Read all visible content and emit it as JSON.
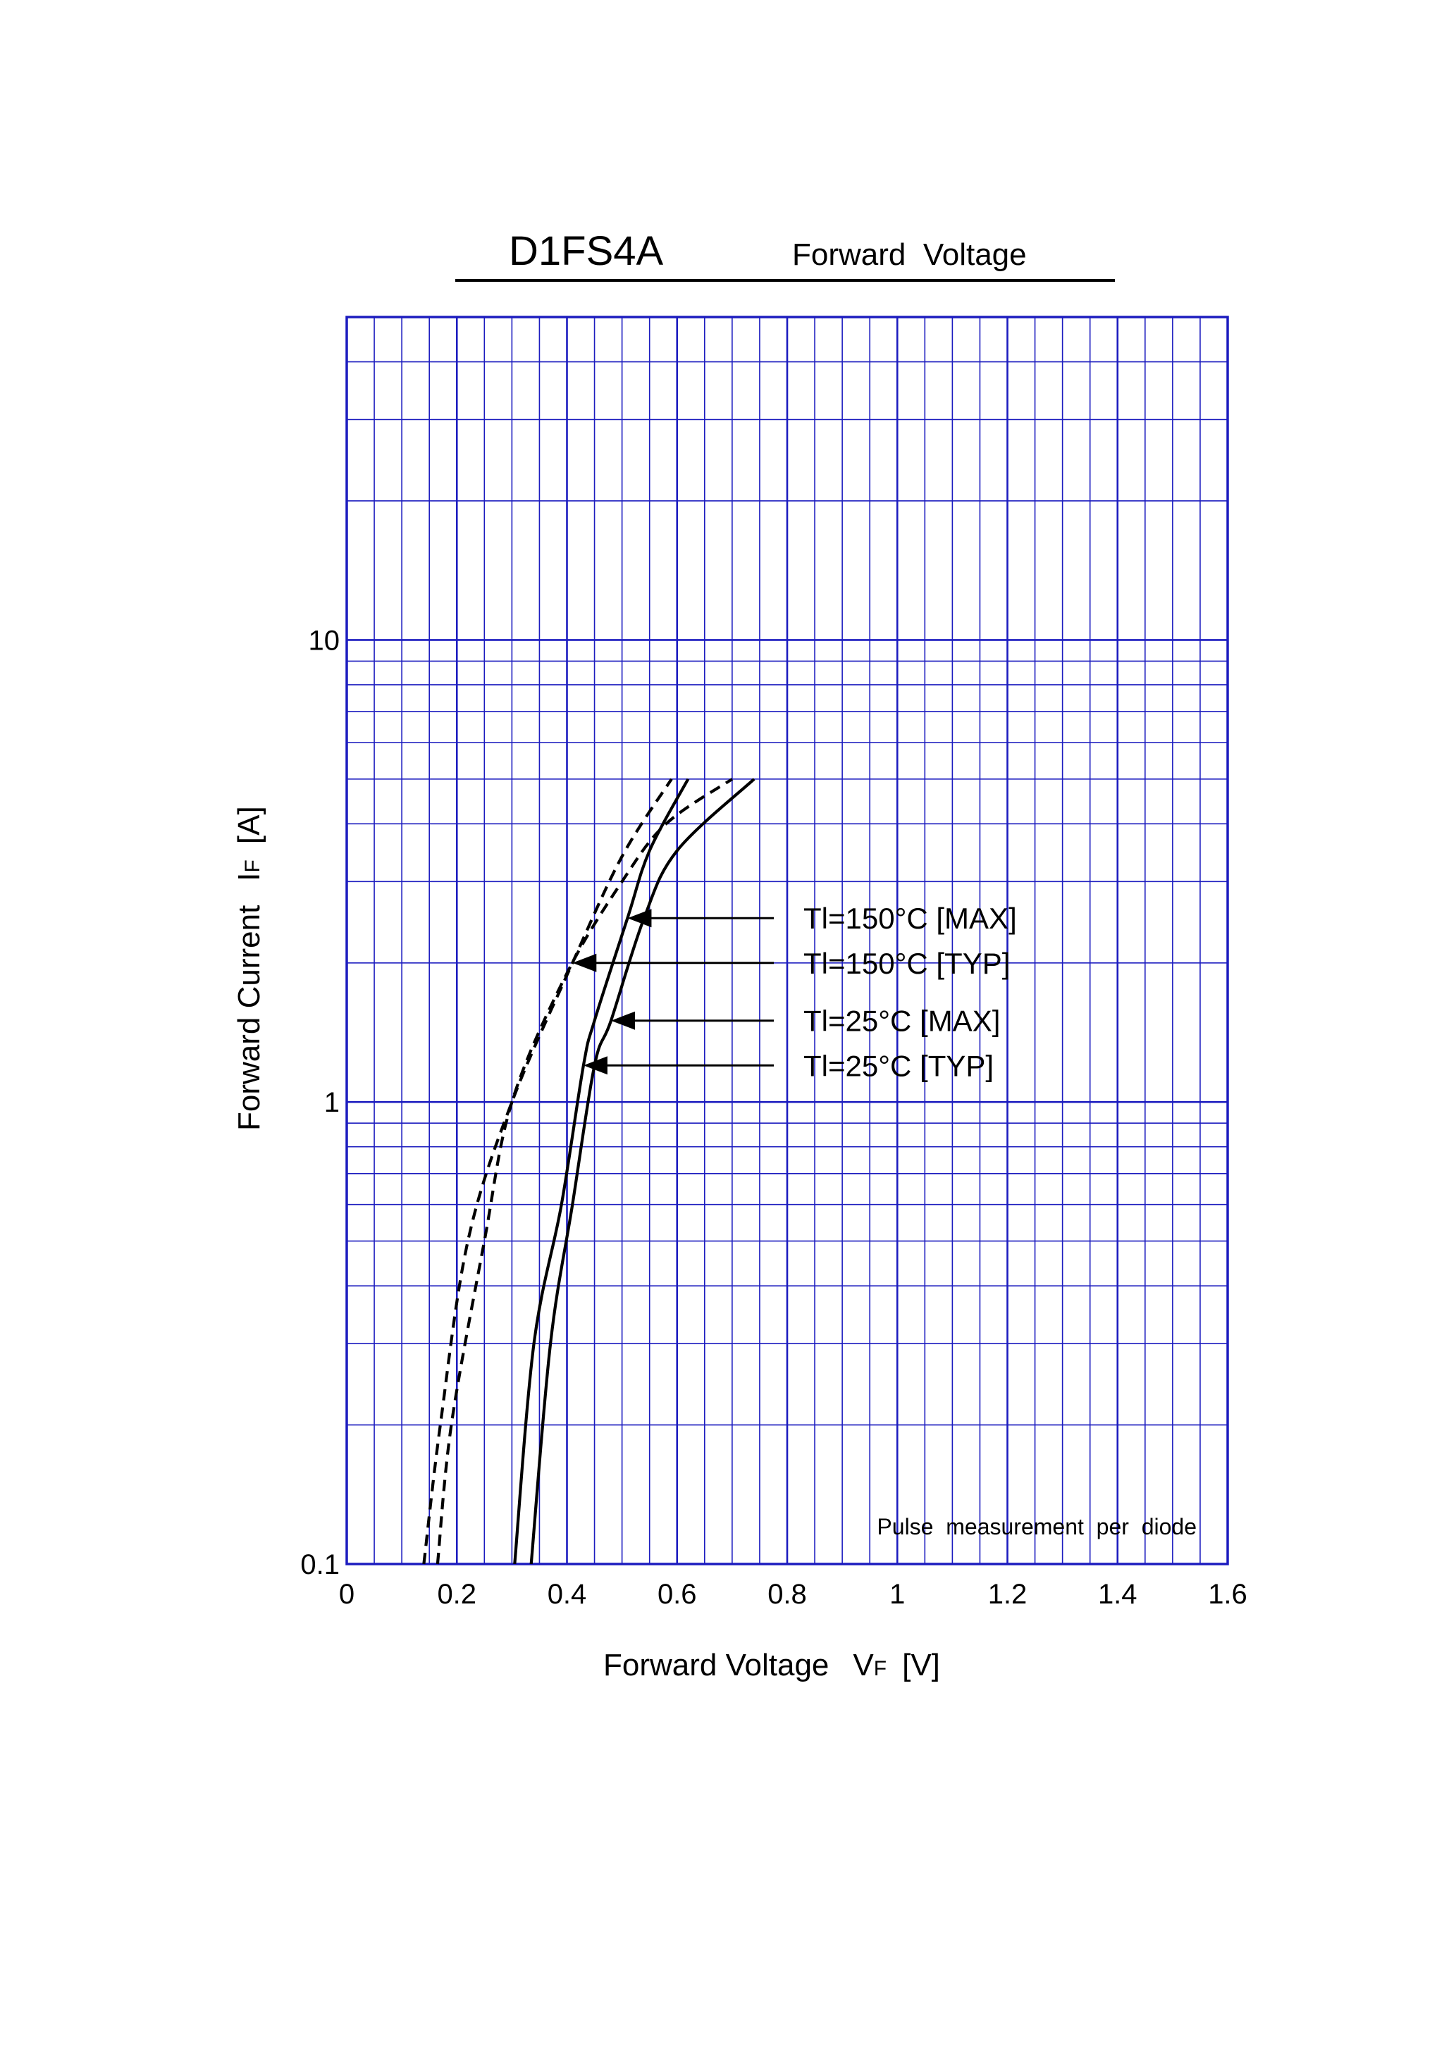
{
  "chart_data": {
    "type": "line",
    "title": "D1FS4A",
    "subtitle": "Forward  Voltage",
    "xlabel": "Forward Voltage",
    "xlabel_symbol": "V",
    "xlabel_subscript": "F",
    "xlabel_unit": "[V]",
    "ylabel": "Forward Current",
    "ylabel_symbol": "I",
    "ylabel_subscript": "F",
    "ylabel_unit": "[A]",
    "xlim": [
      0,
      1.6
    ],
    "ylim": [
      0.1,
      50
    ],
    "yscale": "log",
    "grid": true,
    "x_ticks": [
      "0",
      "0.2",
      "0.4",
      "0.6",
      "0.8",
      "1",
      "1.2",
      "1.4",
      "1.6"
    ],
    "y_ticks": [
      "0.1",
      "1",
      "10"
    ],
    "note": "Pulse  measurement  per  diode",
    "series": [
      {
        "name": "Tl=150°C [MAX]",
        "style": "dashed",
        "points": [
          [
            0.165,
            0.1
          ],
          [
            0.19,
            0.2
          ],
          [
            0.25,
            0.5
          ],
          [
            0.3,
            1.0
          ],
          [
            0.4,
            1.9
          ],
          [
            0.5,
            3.0
          ],
          [
            0.58,
            4.0
          ],
          [
            0.7,
            5.0
          ]
        ]
      },
      {
        "name": "Tl=150°C [TYP]",
        "style": "dashed",
        "points": [
          [
            0.14,
            0.1
          ],
          [
            0.17,
            0.2
          ],
          [
            0.22,
            0.5
          ],
          [
            0.3,
            1.0
          ],
          [
            0.41,
            2.0
          ],
          [
            0.5,
            3.4
          ],
          [
            0.59,
            5.0
          ]
        ]
      },
      {
        "name": "Tl=25°C [MAX]",
        "style": "solid",
        "points": [
          [
            0.335,
            0.1
          ],
          [
            0.37,
            0.3
          ],
          [
            0.41,
            0.6
          ],
          [
            0.45,
            1.2
          ],
          [
            0.48,
            1.5
          ],
          [
            0.54,
            2.5
          ],
          [
            0.6,
            3.5
          ],
          [
            0.74,
            5.0
          ]
        ]
      },
      {
        "name": "Tl=25°C [TYP]",
        "style": "solid",
        "points": [
          [
            0.305,
            0.1
          ],
          [
            0.34,
            0.3
          ],
          [
            0.39,
            0.6
          ],
          [
            0.43,
            1.2
          ],
          [
            0.45,
            1.5
          ],
          [
            0.51,
            2.5
          ],
          [
            0.55,
            3.5
          ],
          [
            0.62,
            5.0
          ]
        ]
      }
    ],
    "annotations": [
      {
        "text": "Tl=150°C [MAX]",
        "target": [
          0.51,
          2.5
        ]
      },
      {
        "text": "Tl=150°C [TYP]",
        "target": [
          0.41,
          2.0
        ]
      },
      {
        "text": "Tl=25°C [MAX]",
        "target": [
          0.48,
          1.5
        ]
      },
      {
        "text": "Tl=25°C [TYP]",
        "target": [
          0.43,
          1.2
        ]
      }
    ],
    "colors": {
      "grid": "#1c1cbf",
      "curve": "#000000"
    }
  }
}
